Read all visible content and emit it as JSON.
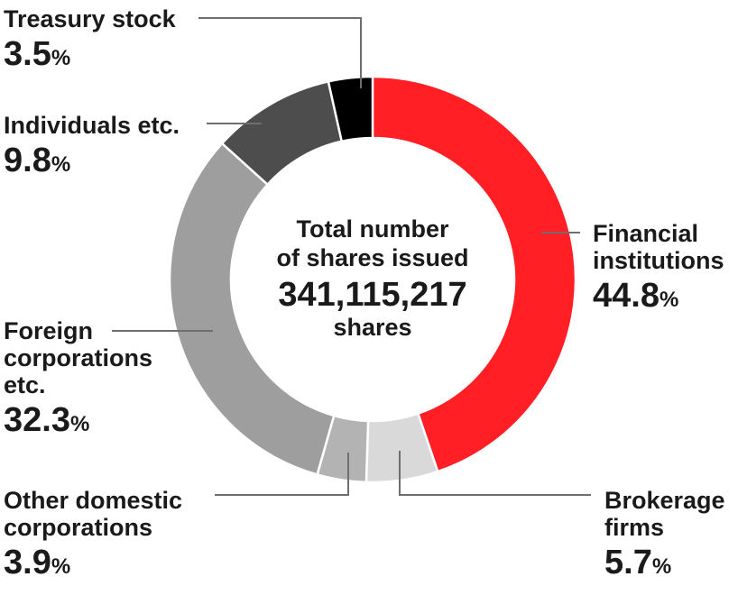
{
  "chart_data": {
    "type": "pie",
    "title": "",
    "center": {
      "title": "Total number\nof shares issued",
      "value": "341,115,217",
      "unit": "shares"
    },
    "percent_unit": "%",
    "slices": [
      {
        "label": "Financial\ninstitutions",
        "value": 44.8,
        "value_text": "44.8",
        "color": "#ff1f24"
      },
      {
        "label": "Brokerage\nfirms",
        "value": 5.7,
        "value_text": "5.7",
        "color": "#d9d9d9"
      },
      {
        "label": "Other domestic\ncorporations",
        "value": 3.9,
        "value_text": "3.9",
        "color": "#b3b3b3"
      },
      {
        "label": "Foreign\ncorporations\netc.",
        "value": 32.3,
        "value_text": "32.3",
        "color": "#9e9e9e"
      },
      {
        "label": "Individuals etc.",
        "value": 9.8,
        "value_text": "9.8",
        "color": "#4d4d4d"
      },
      {
        "label": "Treasury stock",
        "value": 3.5,
        "value_text": "3.5",
        "color": "#000000"
      }
    ]
  }
}
